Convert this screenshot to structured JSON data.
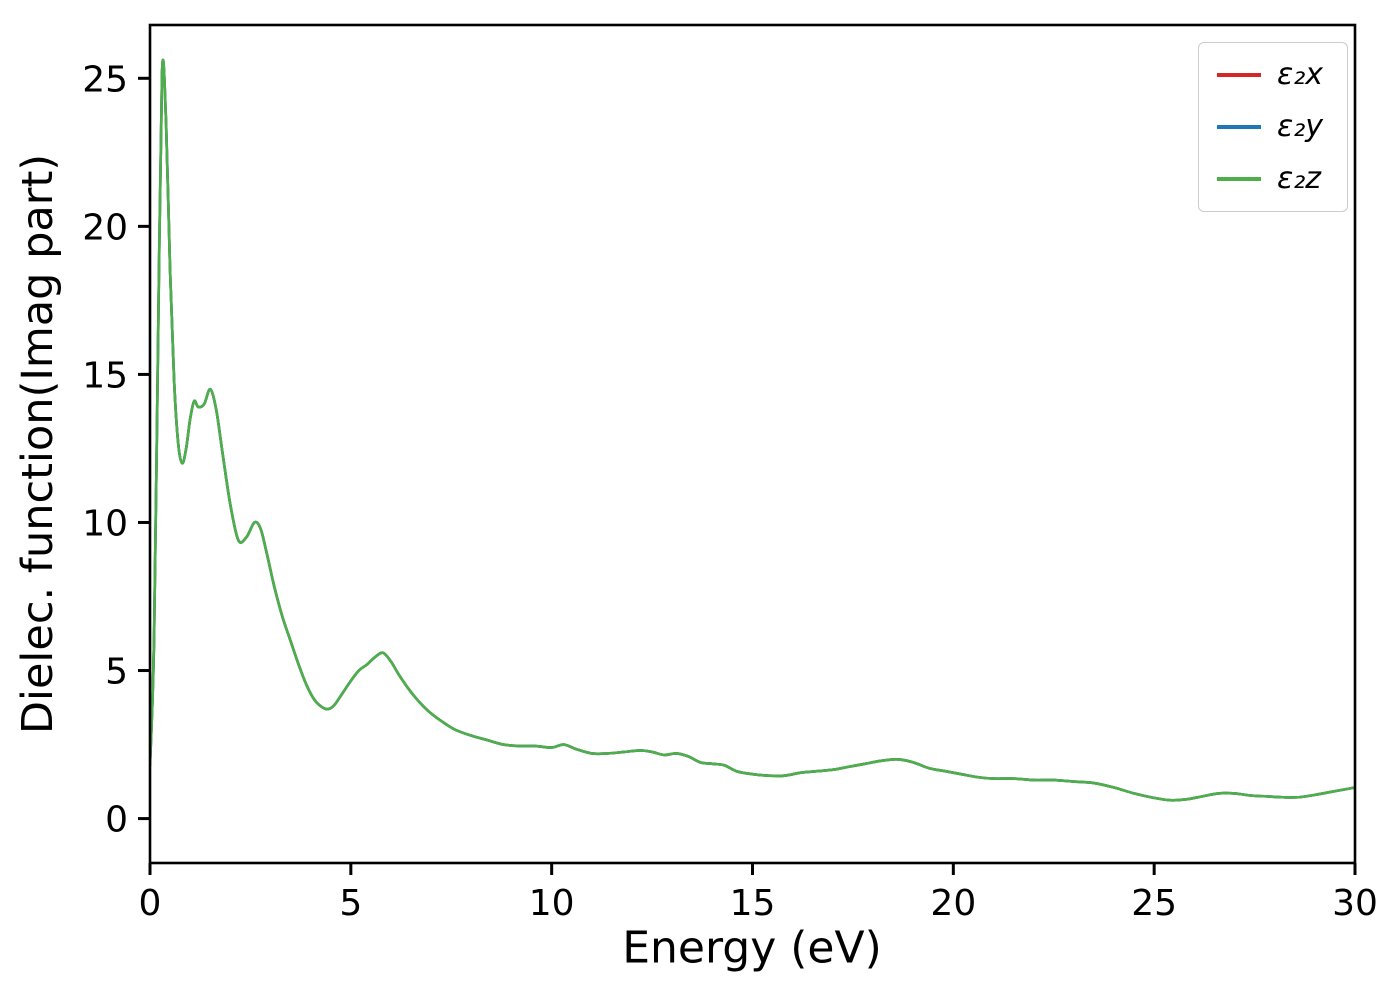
{
  "figure": {
    "background": "#ffffff",
    "text_color": "#000000",
    "spine_color": "#000000"
  },
  "chart_data": {
    "type": "line",
    "title": "",
    "xlabel": "Energy (eV)",
    "ylabel": "Dielec. function(Imag part)",
    "xlim": [
      0,
      30
    ],
    "ylim": [
      -1.5,
      26.8
    ],
    "x_ticks": [
      0,
      5,
      10,
      15,
      20,
      25,
      30
    ],
    "y_ticks": [
      0,
      5,
      10,
      15,
      20,
      25
    ],
    "grid": false,
    "legend_position": "upper right",
    "x": [
      0,
      0.1,
      0.2,
      0.3,
      0.4,
      0.5,
      0.6,
      0.7,
      0.8,
      0.9,
      1.0,
      1.1,
      1.2,
      1.35,
      1.5,
      1.65,
      1.8,
      2.0,
      2.2,
      2.4,
      2.6,
      2.75,
      2.9,
      3.1,
      3.3,
      3.5,
      3.7,
      3.9,
      4.1,
      4.3,
      4.45,
      4.6,
      4.8,
      5.0,
      5.2,
      5.4,
      5.6,
      5.8,
      6.0,
      6.2,
      6.4,
      6.6,
      6.8,
      7.0,
      7.3,
      7.6,
      8.0,
      8.4,
      8.8,
      9.2,
      9.6,
      10.0,
      10.3,
      10.6,
      11.0,
      11.4,
      11.8,
      12.2,
      12.5,
      12.8,
      13.1,
      13.4,
      13.7,
      14.0,
      14.3,
      14.6,
      15.0,
      15.4,
      15.8,
      16.2,
      16.6,
      17.0,
      17.4,
      17.8,
      18.2,
      18.6,
      19.0,
      19.4,
      19.8,
      20.2,
      20.6,
      21.0,
      21.5,
      22.0,
      22.5,
      23.0,
      23.5,
      24.0,
      24.5,
      25.0,
      25.4,
      25.8,
      26.2,
      26.6,
      27.0,
      27.4,
      27.8,
      28.2,
      28.6,
      29.0,
      29.4,
      29.8,
      30.0
    ],
    "series": [
      {
        "name": "ε₂x",
        "color": "#d62728",
        "values": [
          1.8,
          6.0,
          16.0,
          25.2,
          23.5,
          18.5,
          14.8,
          12.7,
          12.0,
          12.5,
          13.5,
          14.1,
          13.9,
          14.0,
          14.5,
          13.8,
          12.4,
          10.6,
          9.4,
          9.5,
          10.0,
          9.8,
          9.0,
          7.8,
          6.8,
          6.0,
          5.2,
          4.5,
          4.0,
          3.75,
          3.7,
          3.85,
          4.25,
          4.65,
          5.0,
          5.2,
          5.45,
          5.6,
          5.3,
          4.85,
          4.45,
          4.1,
          3.8,
          3.55,
          3.25,
          3.0,
          2.8,
          2.65,
          2.5,
          2.45,
          2.45,
          2.4,
          2.5,
          2.35,
          2.2,
          2.2,
          2.25,
          2.3,
          2.25,
          2.15,
          2.2,
          2.1,
          1.9,
          1.85,
          1.8,
          1.6,
          1.5,
          1.45,
          1.45,
          1.55,
          1.6,
          1.65,
          1.75,
          1.85,
          1.95,
          2.0,
          1.9,
          1.7,
          1.6,
          1.5,
          1.4,
          1.35,
          1.35,
          1.3,
          1.3,
          1.25,
          1.2,
          1.05,
          0.85,
          0.7,
          0.62,
          0.65,
          0.75,
          0.85,
          0.85,
          0.78,
          0.75,
          0.72,
          0.72,
          0.8,
          0.9,
          1.0,
          1.05
        ]
      },
      {
        "name": "ε₂y",
        "color": "#1f77b4",
        "values": [
          1.8,
          6.0,
          16.0,
          25.2,
          23.5,
          18.5,
          14.8,
          12.7,
          12.0,
          12.5,
          13.5,
          14.1,
          13.9,
          14.0,
          14.5,
          13.8,
          12.4,
          10.6,
          9.4,
          9.5,
          10.0,
          9.8,
          9.0,
          7.8,
          6.8,
          6.0,
          5.2,
          4.5,
          4.0,
          3.75,
          3.7,
          3.85,
          4.25,
          4.65,
          5.0,
          5.2,
          5.45,
          5.6,
          5.3,
          4.85,
          4.45,
          4.1,
          3.8,
          3.55,
          3.25,
          3.0,
          2.8,
          2.65,
          2.5,
          2.45,
          2.45,
          2.4,
          2.5,
          2.35,
          2.2,
          2.2,
          2.25,
          2.3,
          2.25,
          2.15,
          2.2,
          2.1,
          1.9,
          1.85,
          1.8,
          1.6,
          1.5,
          1.45,
          1.45,
          1.55,
          1.6,
          1.65,
          1.75,
          1.85,
          1.95,
          2.0,
          1.9,
          1.7,
          1.6,
          1.5,
          1.4,
          1.35,
          1.35,
          1.3,
          1.3,
          1.25,
          1.2,
          1.05,
          0.85,
          0.7,
          0.62,
          0.65,
          0.75,
          0.85,
          0.85,
          0.78,
          0.75,
          0.72,
          0.72,
          0.8,
          0.9,
          1.0,
          1.05
        ]
      },
      {
        "name": "ε₂z",
        "color": "#4daf4a",
        "values": [
          1.8,
          6.0,
          16.0,
          25.2,
          23.5,
          18.5,
          14.8,
          12.7,
          12.0,
          12.5,
          13.5,
          14.1,
          13.9,
          14.0,
          14.5,
          13.8,
          12.4,
          10.6,
          9.4,
          9.5,
          10.0,
          9.8,
          9.0,
          7.8,
          6.8,
          6.0,
          5.2,
          4.5,
          4.0,
          3.75,
          3.7,
          3.85,
          4.25,
          4.65,
          5.0,
          5.2,
          5.45,
          5.6,
          5.3,
          4.85,
          4.45,
          4.1,
          3.8,
          3.55,
          3.25,
          3.0,
          2.8,
          2.65,
          2.5,
          2.45,
          2.45,
          2.4,
          2.5,
          2.35,
          2.2,
          2.2,
          2.25,
          2.3,
          2.25,
          2.15,
          2.2,
          2.1,
          1.9,
          1.85,
          1.8,
          1.6,
          1.5,
          1.45,
          1.45,
          1.55,
          1.6,
          1.65,
          1.75,
          1.85,
          1.95,
          2.0,
          1.9,
          1.7,
          1.6,
          1.5,
          1.4,
          1.35,
          1.35,
          1.3,
          1.3,
          1.25,
          1.2,
          1.05,
          0.85,
          0.7,
          0.62,
          0.65,
          0.75,
          0.85,
          0.85,
          0.78,
          0.75,
          0.72,
          0.72,
          0.8,
          0.9,
          1.0,
          1.05
        ]
      }
    ]
  }
}
